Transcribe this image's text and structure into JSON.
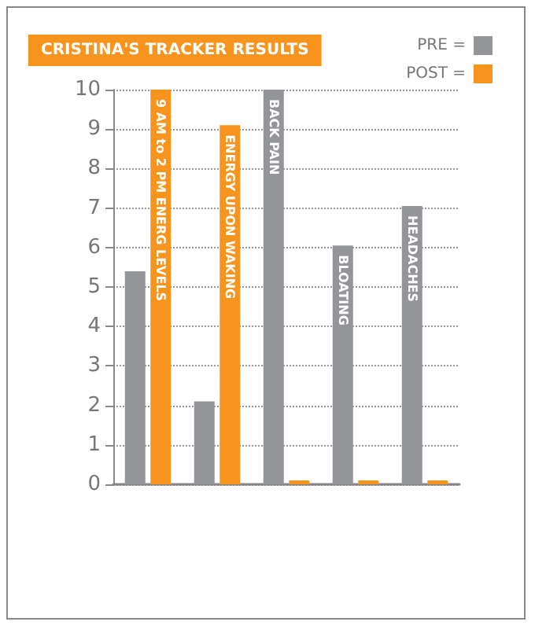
{
  "chart_data": {
    "type": "bar",
    "title": "CRISTINA'S TRACKER RESULTS",
    "categories": [
      "9 AM to 2 PM ENERG LEVELS",
      "ENERGY UPON WAKING",
      "BACK PAIN",
      "BLOATING",
      "HEADACHES"
    ],
    "series": [
      {
        "name": "PRE =",
        "color": "#939598",
        "values": [
          5.4,
          2.1,
          10,
          6.05,
          7.05
        ]
      },
      {
        "name": "POST =",
        "color": "#f7941d",
        "values": [
          10,
          9.1,
          0.1,
          0.1,
          0.1
        ]
      }
    ],
    "ylim": [
      0,
      10
    ],
    "yticks": [
      0,
      1,
      2,
      3,
      4,
      5,
      6,
      7,
      8,
      9,
      10
    ],
    "grid": "y",
    "legend": "top right"
  }
}
